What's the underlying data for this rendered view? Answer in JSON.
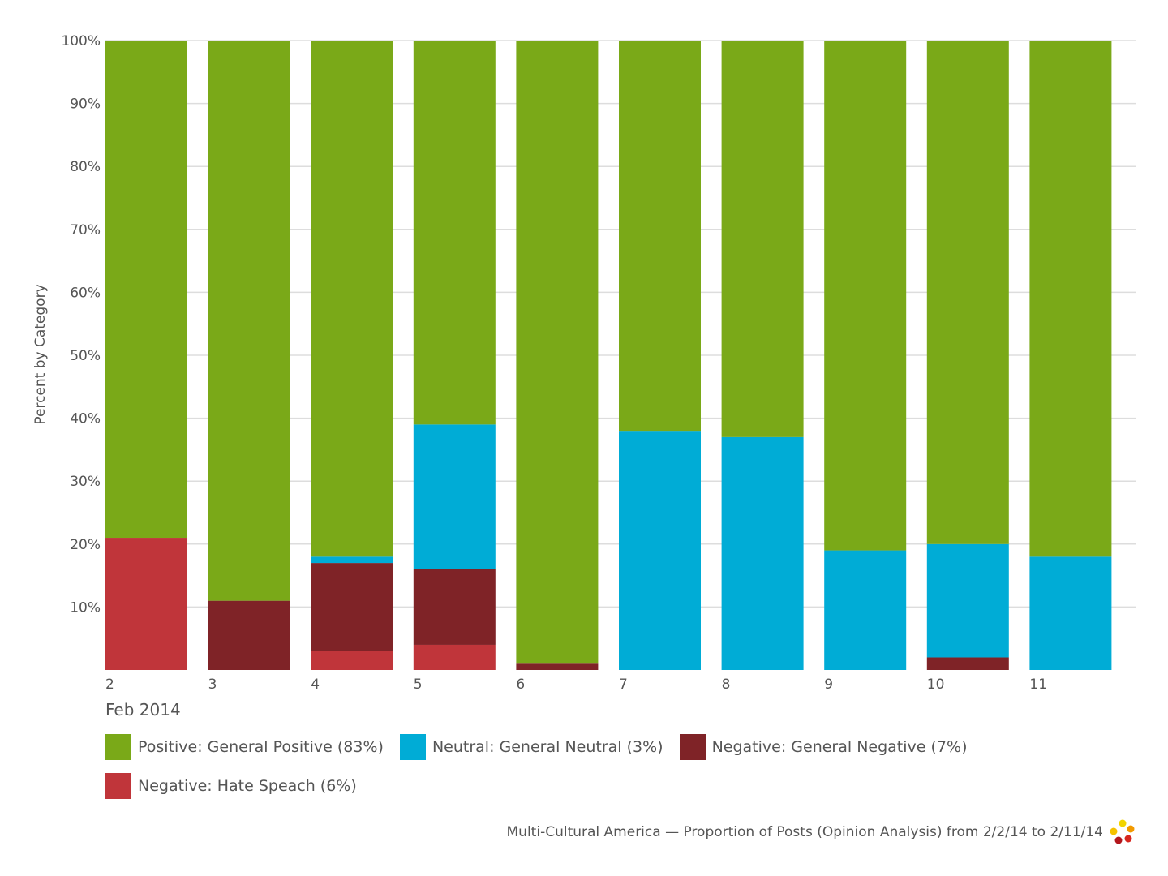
{
  "chart_data": {
    "type": "bar",
    "stacked": true,
    "categories": [
      "2",
      "3",
      "4",
      "5",
      "6",
      "7",
      "8",
      "9",
      "10",
      "11"
    ],
    "period_label": "Feb 2014",
    "ylabel": "Percent by Category",
    "ylim": [
      0,
      100
    ],
    "y_ticks": [
      "10%",
      "20%",
      "30%",
      "40%",
      "50%",
      "60%",
      "70%",
      "80%",
      "90%",
      "100%"
    ],
    "grid": true,
    "legend_position": "bottom",
    "series": [
      {
        "name": "Negative: Hate Speach (6%)",
        "color": "#c0353a",
        "values": [
          21,
          0,
          3,
          4,
          0,
          0,
          0,
          0,
          0,
          0
        ]
      },
      {
        "name": "Negative: General Negative (7%)",
        "color": "#7f2327",
        "values": [
          0,
          11,
          14,
          12,
          1,
          0,
          0,
          0,
          2,
          0
        ]
      },
      {
        "name": "Neutral: General Neutral (3%)",
        "color": "#00acd6",
        "values": [
          0,
          0,
          1,
          23,
          0,
          38,
          37,
          19,
          18,
          18
        ]
      },
      {
        "name": "Positive: General Positive (83%)",
        "color": "#7aa918",
        "values": [
          79,
          89,
          82,
          61,
          99,
          62,
          63,
          81,
          80,
          82
        ]
      }
    ]
  },
  "legend": {
    "rows": [
      [
        {
          "label": "Positive: General Positive (83%)",
          "color": "#7aa918"
        },
        {
          "label": "Neutral: General Neutral (3%)",
          "color": "#00acd6"
        },
        {
          "label": "Negative: General Negative (7%)",
          "color": "#7f2327"
        }
      ],
      [
        {
          "label": "Negative: Hate Speach (6%)",
          "color": "#c0353a"
        }
      ]
    ]
  },
  "footer": {
    "caption": "Multi-Cultural America — Proportion of Posts (Opinion Analysis) from 2/2/14 to 2/11/14",
    "logo_icon": "flower-dots-logo-icon"
  }
}
